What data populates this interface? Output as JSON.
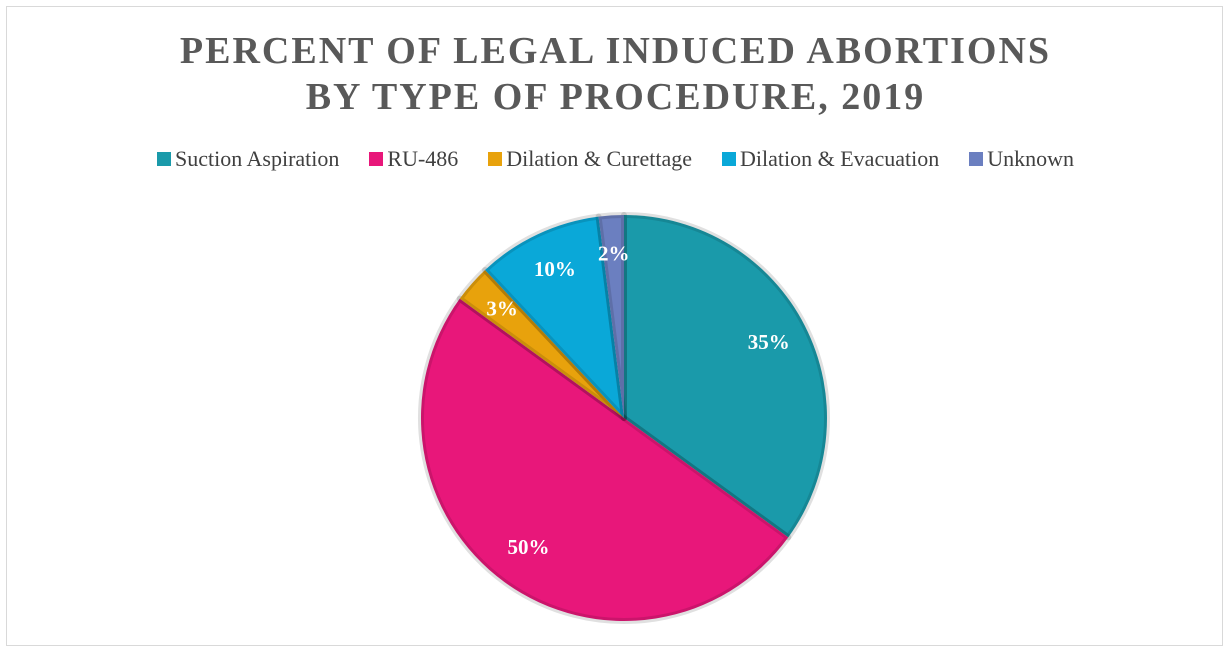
{
  "chart_data": {
    "type": "pie",
    "title": "PERCENT OF LEGAL INDUCED ABORTIONS BY TYPE OF PROCEDURE, 2019",
    "categories": [
      "Suction Aspiration",
      "RU-486",
      "Dilation & Curettage",
      "Dilation & Evacuation",
      "Unknown"
    ],
    "values": [
      35,
      50,
      3,
      10,
      2
    ],
    "value_labels": [
      "35%",
      "50%",
      "3%",
      "10%",
      "2%"
    ],
    "colors": [
      "#1a9aaa",
      "#e8177a",
      "#e8a20c",
      "#0aa8d8",
      "#6b7fc0"
    ],
    "legend": "top"
  }
}
